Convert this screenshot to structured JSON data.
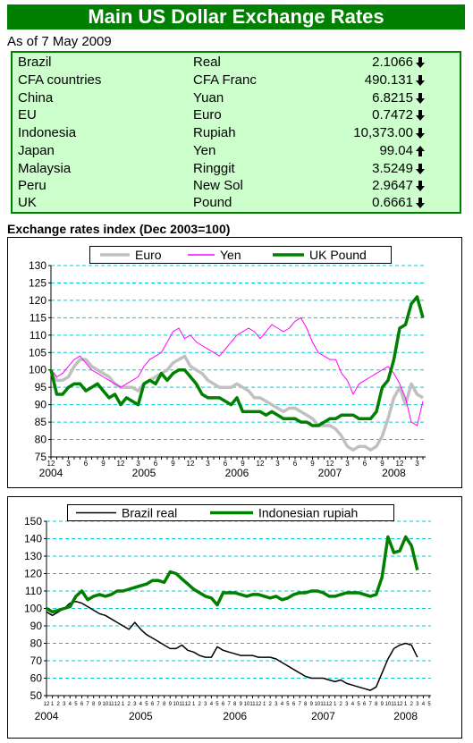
{
  "title": "Main US Dollar Exchange Rates",
  "subtitle": "As of 7 May 2009",
  "table": {
    "rows": [
      [
        "Brazil",
        "Real",
        "2.1066"
      ],
      [
        "CFA countries",
        "CFA Franc",
        "490.131"
      ],
      [
        "China",
        "Yuan",
        "6.8215"
      ],
      [
        "EU",
        "Euro",
        "0.7472"
      ],
      [
        "Indonesia",
        "Rupiah",
        "10,373.00"
      ],
      [
        "Japan",
        "Yen",
        "99.04"
      ],
      [
        "Malaysia",
        "Ringgit",
        "3.5249"
      ],
      [
        "Peru",
        "New Sol",
        "2.9647"
      ],
      [
        "UK",
        "Pound",
        "0.6661"
      ]
    ]
  },
  "chart_data": [
    {
      "type": "line",
      "title": "Exchange rates index (Dec 2003=100)",
      "categories": [
        "12",
        null,
        null,
        "3",
        null,
        null,
        "6",
        null,
        null,
        "9",
        null,
        null,
        "12",
        null,
        null,
        "3",
        null,
        null,
        "6",
        null,
        null,
        "9",
        null,
        null,
        "12",
        null,
        null,
        "3",
        null,
        null,
        "6",
        null,
        null,
        "9",
        null,
        null,
        "12",
        null,
        null,
        "3",
        null,
        null,
        "6",
        null,
        null,
        "9",
        null,
        null,
        "12",
        null,
        null,
        "3",
        null,
        null,
        "6",
        null,
        null,
        "9",
        null,
        null,
        "12",
        null,
        null,
        "3",
        null
      ],
      "year_labels": [
        "2004",
        "2005",
        "2006",
        "2007",
        "2008"
      ],
      "series": [
        {
          "name": "Euro",
          "color": "#c0c0c0",
          "values": [
            100,
            97,
            97,
            98,
            101,
            103,
            103,
            101,
            100,
            99,
            98,
            96,
            95,
            95,
            95,
            94,
            96,
            97,
            98,
            99,
            100,
            102,
            103,
            104,
            101,
            100,
            99,
            97,
            96,
            95,
            95,
            95,
            96,
            95,
            94,
            92,
            92,
            91,
            90,
            89,
            88,
            89,
            89,
            88,
            87,
            86,
            84,
            84,
            84,
            83,
            81,
            78,
            77,
            78,
            78,
            77,
            78,
            81,
            86,
            92,
            95,
            90,
            96,
            93,
            92
          ]
        },
        {
          "name": "Yen",
          "color": "#ff00ff",
          "values": [
            100,
            98,
            99,
            101,
            103,
            104,
            102,
            100,
            99,
            98,
            97,
            96,
            95,
            96,
            97,
            98,
            101,
            103,
            104,
            105,
            108,
            111,
            112,
            109,
            110,
            108,
            107,
            106,
            105,
            104,
            106,
            108,
            110,
            111,
            112,
            111,
            109,
            111,
            113,
            112,
            111,
            112,
            114,
            115,
            112,
            108,
            105,
            104,
            103,
            103,
            99,
            97,
            93,
            96,
            97,
            98,
            99,
            100,
            101,
            99,
            96,
            92,
            85,
            84,
            91
          ]
        },
        {
          "name": "UK Pound",
          "color": "#008000",
          "values": [
            100,
            93,
            93,
            95,
            96,
            96,
            94,
            95,
            96,
            94,
            92,
            93,
            90,
            92,
            91,
            90,
            96,
            97,
            96,
            99,
            97,
            99,
            100,
            100,
            98,
            96,
            93,
            92,
            92,
            92,
            91,
            90,
            92,
            88,
            88,
            88,
            88,
            87,
            88,
            87,
            86,
            86,
            86,
            85,
            85,
            84,
            84,
            85,
            86,
            86,
            87,
            87,
            87,
            86,
            86,
            86,
            88,
            95,
            97,
            103,
            112,
            113,
            119,
            121,
            115
          ]
        }
      ],
      "ylim": [
        75,
        130
      ],
      "yticks": [
        75,
        80,
        85,
        90,
        95,
        100,
        105,
        110,
        115,
        120,
        125,
        130
      ],
      "grid": true
    },
    {
      "type": "line",
      "categories": [
        "12",
        "1",
        "2",
        "3",
        "4",
        "5",
        "6",
        "7",
        "8",
        "9",
        "10",
        "11",
        "12",
        "1",
        "2",
        "3",
        "4",
        "5",
        "6",
        "7",
        "8",
        "9",
        "10",
        "11",
        "12",
        "1",
        "2",
        "3",
        "4",
        "5",
        "6",
        "7",
        "8",
        "9",
        "10",
        "11",
        "12",
        "1",
        "2",
        "3",
        "4",
        "5",
        "6",
        "7",
        "8",
        "9",
        "10",
        "11",
        "12",
        "1",
        "2",
        "3",
        "4",
        "5",
        "6",
        "7",
        "8",
        "9",
        "10",
        "11",
        "12",
        "1",
        "2",
        "3",
        "4",
        "5"
      ],
      "year_labels": [
        "2004",
        "2005",
        "2006",
        "2007",
        "2008"
      ],
      "series": [
        {
          "name": "Brazil real",
          "color": "#000000",
          "values": [
            98,
            96,
            98,
            100,
            103,
            104,
            103,
            101,
            99,
            97,
            96,
            94,
            92,
            90,
            88,
            92,
            88,
            85,
            83,
            81,
            79,
            77,
            77,
            79,
            76,
            75,
            73,
            72,
            72,
            78,
            76,
            75,
            74,
            73,
            73,
            73,
            72,
            72,
            72,
            71,
            69,
            67,
            65,
            63,
            61,
            60,
            60,
            60,
            59,
            58,
            59,
            57,
            56,
            55,
            54,
            53,
            55,
            63,
            71,
            77,
            79,
            80,
            79,
            72,
            null,
            null
          ]
        },
        {
          "name": "Indonesian rupiah",
          "color": "#008000",
          "values": [
            100,
            98,
            99,
            100,
            101,
            107,
            110,
            105,
            107,
            108,
            107,
            108,
            110,
            110,
            111,
            112,
            113,
            114,
            116,
            116,
            115,
            121,
            120,
            117,
            114,
            111,
            109,
            107,
            106,
            102,
            109,
            109,
            109,
            108,
            107,
            108,
            108,
            107,
            106,
            107,
            105,
            106,
            108,
            109,
            109,
            110,
            110,
            109,
            107,
            107,
            108,
            109,
            109,
            109,
            108,
            107,
            108,
            118,
            141,
            132,
            133,
            141,
            136,
            122,
            null,
            null
          ]
        }
      ],
      "ylim": [
        50,
        150
      ],
      "yticks": [
        50,
        60,
        70,
        80,
        90,
        100,
        110,
        120,
        130,
        140,
        150
      ],
      "grid": true
    }
  ]
}
